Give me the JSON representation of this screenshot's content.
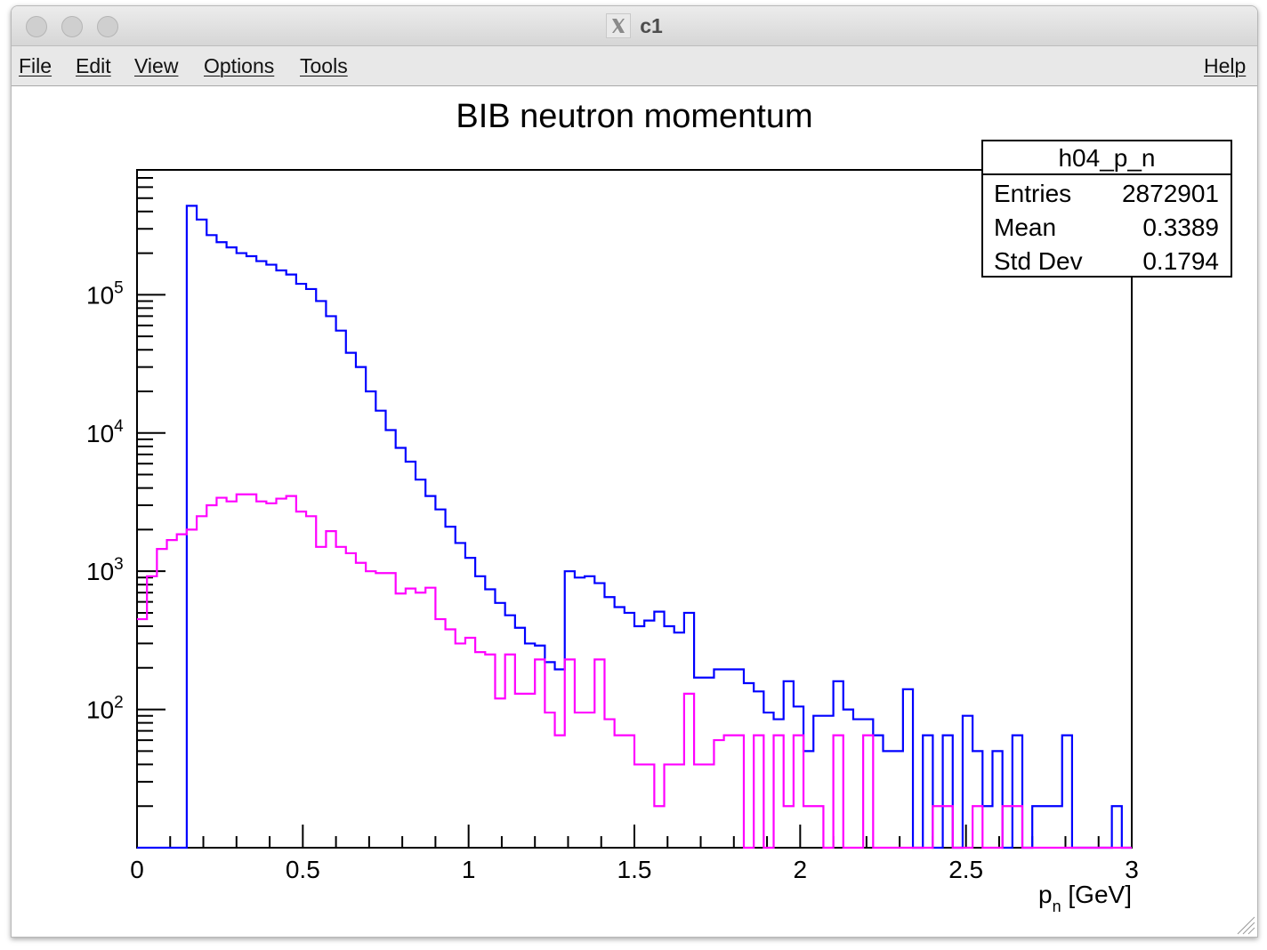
{
  "window": {
    "title": "c1",
    "app_icon": "x11-icon"
  },
  "menu": {
    "file": "File",
    "edit": "Edit",
    "view": "View",
    "options": "Options",
    "tools": "Tools",
    "help": "Help"
  },
  "colors": {
    "series_blue": "#0000ff",
    "series_magenta": "#ff00ff"
  },
  "stats_box": {
    "name": "h04_p_n",
    "rows": [
      {
        "label": "Entries",
        "value": "2872901"
      },
      {
        "label": "Mean",
        "value": "0.3389"
      },
      {
        "label": "Std Dev",
        "value": "0.1794"
      }
    ]
  },
  "chart_data": {
    "type": "line",
    "title": "BIB neutron momentum",
    "xlabel": "p_n [GeV]",
    "xlabel_main": "p",
    "xlabel_sub": "n",
    "xlabel_unit": " [GeV]",
    "ylabel": "",
    "xlim": [
      0,
      3
    ],
    "ylim": [
      10,
      800000
    ],
    "yscale": "log",
    "x_ticks": [
      0,
      0.5,
      1,
      1.5,
      2,
      2.5,
      3
    ],
    "x_tick_labels": [
      "0",
      "0.5",
      "1",
      "1.5",
      "2",
      "2.5",
      "3"
    ],
    "y_ticks": [
      100,
      1000,
      10000,
      100000
    ],
    "y_tick_labels": [
      {
        "base": "10",
        "exp": "2"
      },
      {
        "base": "10",
        "exp": "3"
      },
      {
        "base": "10",
        "exp": "4"
      },
      {
        "base": "10",
        "exp": "5"
      }
    ],
    "grid": false,
    "histogram_bins": {
      "n": 100,
      "min": 0,
      "max": 3
    },
    "series": [
      {
        "color": "#0000ff",
        "values": [
          0,
          0,
          0,
          0,
          0,
          440000,
          350000,
          270000,
          240000,
          220000,
          200000,
          190000,
          175000,
          165000,
          150000,
          140000,
          120000,
          110000,
          90000,
          70000,
          55000,
          38000,
          30000,
          20000,
          14500,
          10500,
          7800,
          6200,
          4600,
          3500,
          2800,
          2100,
          1600,
          1250,
          920,
          740,
          590,
          480,
          390,
          300,
          290,
          220,
          195,
          1000,
          900,
          920,
          820,
          650,
          550,
          500,
          400,
          440,
          510,
          400,
          360,
          500,
          170,
          170,
          195,
          195,
          195,
          155,
          135,
          95,
          85,
          160,
          105,
          50,
          90,
          90,
          160,
          100,
          85,
          85,
          65,
          50,
          50,
          140,
          10,
          65,
          10,
          65,
          10,
          90,
          50,
          20,
          50,
          10,
          65,
          10,
          20,
          20,
          20,
          65,
          10,
          10,
          10,
          10,
          20,
          10
        ]
      },
      {
        "color": "#ff00ff",
        "values": [
          450,
          920,
          1450,
          1680,
          1850,
          2000,
          2500,
          3000,
          3400,
          3200,
          3600,
          3600,
          3200,
          3100,
          3350,
          3500,
          2700,
          2500,
          1500,
          1950,
          1500,
          1350,
          1150,
          1000,
          970,
          970,
          690,
          750,
          700,
          760,
          450,
          380,
          300,
          330,
          260,
          250,
          120,
          250,
          130,
          130,
          230,
          95,
          65,
          230,
          95,
          95,
          230,
          85,
          65,
          65,
          40,
          40,
          20,
          40,
          40,
          130,
          40,
          40,
          60,
          65,
          65,
          10,
          65,
          10,
          65,
          20,
          65,
          20,
          20,
          10,
          65,
          10,
          10,
          65,
          10,
          10,
          10,
          10,
          10,
          10,
          20,
          20,
          10,
          10,
          20,
          10,
          10,
          20,
          20,
          10,
          10,
          10,
          10,
          10,
          10,
          10,
          10,
          10,
          10,
          10
        ]
      }
    ]
  }
}
